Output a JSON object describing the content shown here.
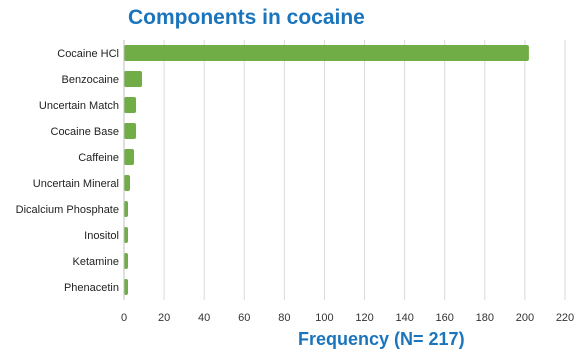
{
  "chart_data": {
    "type": "bar",
    "orientation": "horizontal",
    "title": "Components in cocaine",
    "xlabel": "Frequency (N= 217)",
    "ylabel": "",
    "categories": [
      "Cocaine HCl",
      "Benzocaine",
      "Uncertain Match",
      "Cocaine Base",
      "Caffeine",
      "Uncertain Mineral",
      "Dicalcium Phosphate",
      "Inositol",
      "Ketamine",
      "Phenacetin"
    ],
    "values": [
      202,
      9,
      6,
      6,
      5,
      3,
      2,
      2,
      2,
      2
    ],
    "xlim": [
      0,
      220
    ],
    "xticks": [
      0,
      20,
      40,
      60,
      80,
      100,
      120,
      140,
      160,
      180,
      200,
      220
    ],
    "grid": true,
    "bar_color": "#70ad47",
    "grid_color": "#d9d9d9",
    "title_color": "#1b75bc"
  }
}
